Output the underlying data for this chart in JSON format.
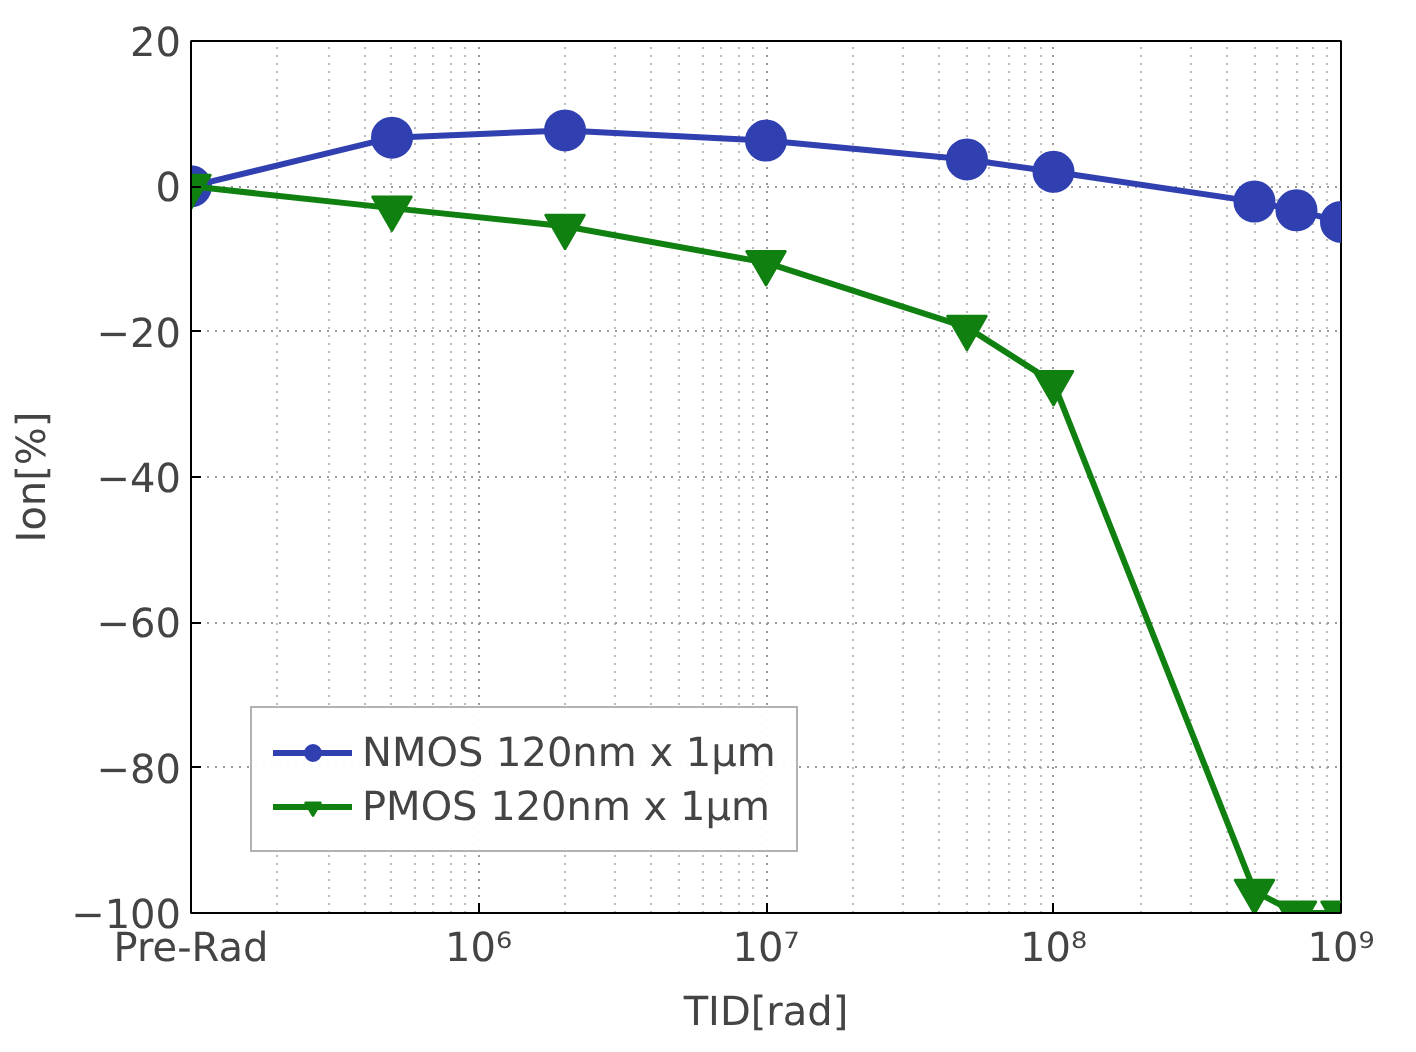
{
  "chart_data": {
    "type": "line",
    "xlabel": "TID[rad]",
    "ylabel": "Ion[%]",
    "log": "x",
    "xlim": [
      100000,
      1000000000
    ],
    "ylim": [
      -100,
      20
    ],
    "xticks": [
      {
        "value": 100000,
        "label": "Pre‑Rad"
      },
      {
        "value": 1000000,
        "label": "10⁶"
      },
      {
        "value": 10000000,
        "label": "10⁷"
      },
      {
        "value": 100000000,
        "label": "10⁸"
      },
      {
        "value": 1000000000,
        "label": "10⁹"
      }
    ],
    "yticks": [
      -100,
      -80,
      -60,
      -40,
      -20,
      0,
      20
    ],
    "grid": true,
    "legend": "bottom left",
    "line_style": "solid",
    "series": [
      {
        "name": "NMOS 120nm x 1µm",
        "color": "#3040b0",
        "marker": "circle",
        "x": [
          100000,
          500000,
          2000000,
          10000000,
          50000000,
          100000000,
          500000000,
          700000000,
          1000000000
        ],
        "values": [
          0,
          6.7,
          7.7,
          6.3,
          3.7,
          2.0,
          -2.1,
          -3.3,
          -4.9
        ]
      },
      {
        "name": "PMOS 120nm x 1µm",
        "color": "#108010",
        "marker": "triangle",
        "x": [
          100000,
          500000,
          2000000,
          10000000,
          50000000,
          100000000,
          500000000,
          700000000,
          1000000000
        ],
        "values": [
          0,
          -3,
          -5.5,
          -10.5,
          -19.4,
          -27,
          -97,
          -100,
          -100
        ]
      }
    ]
  }
}
